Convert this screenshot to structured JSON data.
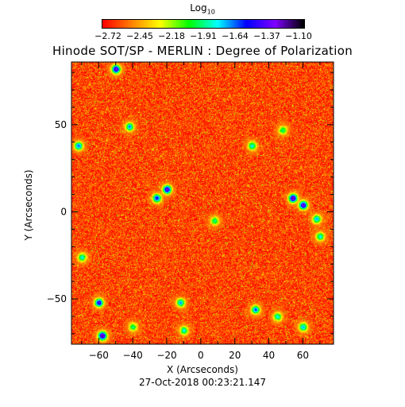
{
  "chart_data": {
    "type": "heatmap",
    "title": "Hinode SOT/SP - MERLIN : Degree of Polarization",
    "xlabel": "X (Arcseconds)",
    "ylabel": "Y (Arcseconds)",
    "xlim": [
      -76,
      78
    ],
    "ylim": [
      -76,
      86
    ],
    "x_ticks": [
      -60,
      -40,
      -20,
      0,
      20,
      40,
      60
    ],
    "y_ticks": [
      -50,
      0,
      50
    ],
    "colorbar": {
      "label": "Log",
      "label_subscript": "10",
      "ticks": [
        "-2.72",
        "-2.45",
        "-2.18",
        "-1.91",
        "-1.64",
        "-1.37",
        "-1.10"
      ],
      "range": [
        -2.72,
        -1.1
      ],
      "colors": [
        "#ff0000",
        "#ff8000",
        "#ffff00",
        "#00ff00",
        "#00ffff",
        "#0000ff",
        "#8000ff",
        "#000000"
      ]
    },
    "background_level": -2.6,
    "features": [
      {
        "x": -50,
        "y": 82,
        "level": -1.3
      },
      {
        "x": -42,
        "y": 49,
        "level": -1.7
      },
      {
        "x": -72,
        "y": 38,
        "level": -1.6
      },
      {
        "x": 30,
        "y": 38,
        "level": -1.8
      },
      {
        "x": 48,
        "y": 47,
        "level": -1.9
      },
      {
        "x": -20,
        "y": 13,
        "level": -1.3
      },
      {
        "x": -26,
        "y": 8,
        "level": -1.5
      },
      {
        "x": 54,
        "y": 8,
        "level": -1.2
      },
      {
        "x": 60,
        "y": 4,
        "level": -1.3
      },
      {
        "x": 68,
        "y": -4,
        "level": -1.7
      },
      {
        "x": 70,
        "y": -14,
        "level": -1.8
      },
      {
        "x": 8,
        "y": -5,
        "level": -1.9
      },
      {
        "x": -70,
        "y": -26,
        "level": -1.8
      },
      {
        "x": -60,
        "y": -52,
        "level": -1.4
      },
      {
        "x": -12,
        "y": -52,
        "level": -1.7
      },
      {
        "x": 32,
        "y": -56,
        "level": -1.6
      },
      {
        "x": 45,
        "y": -60,
        "level": -1.8
      },
      {
        "x": -58,
        "y": -71,
        "level": -1.2
      },
      {
        "x": -10,
        "y": -68,
        "level": -1.8
      },
      {
        "x": 60,
        "y": -66,
        "level": -1.7
      },
      {
        "x": -40,
        "y": -66,
        "level": -1.9
      }
    ]
  },
  "footer": {
    "timestamp": "27-Oct-2018 00:23:21.147"
  }
}
